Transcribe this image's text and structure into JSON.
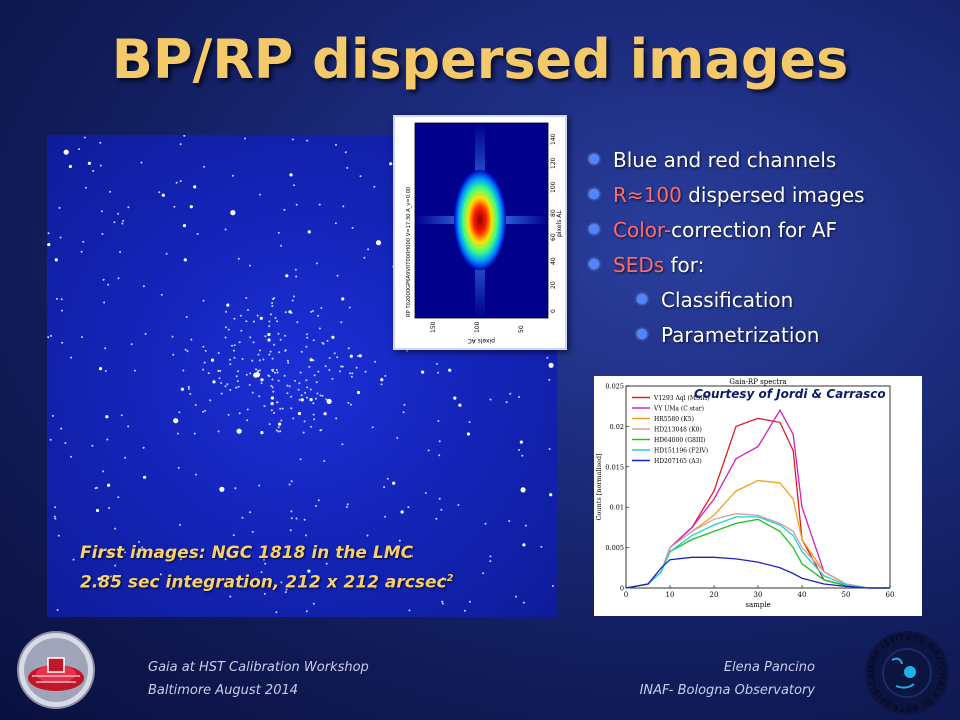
{
  "slide": {
    "title": "BP/RP dispersed images"
  },
  "starfield": {
    "caption_line1": "First images: NGC 1818 in the LMC",
    "caption_line2": "2.85 sec integration, 212 x 212 arcsec",
    "caption_sup": "2"
  },
  "inset": {
    "vertical_label": "RP T02000GP6A9V0T000H000 V=17.30 A_v=0.00",
    "x_axis_label": "pixels AC",
    "y_axis_label": "pixels AL",
    "x_ticks": [
      "150",
      "100",
      "50"
    ],
    "y_ticks": [
      "0",
      "20",
      "40",
      "60",
      "80",
      "100",
      "120",
      "140"
    ]
  },
  "bullets": [
    {
      "text_a": "Blue and red channels",
      "text_red": "",
      "text_b": ""
    },
    {
      "text_a": "",
      "text_red": "R≈100",
      "text_b": " dispersed images"
    },
    {
      "text_a": "",
      "text_red": "Color-",
      "text_b": "correction for AF"
    },
    {
      "text_a": "",
      "text_red": "SEDs",
      "text_b": " for:"
    }
  ],
  "sub_bullets": [
    "Classification",
    "Parametrization"
  ],
  "chart_data": {
    "type": "line",
    "title": "Gaia-RP spectra",
    "xlabel": "sample",
    "ylabel": "Counts [normalised]",
    "xlim": [
      0,
      60
    ],
    "ylim": [
      0,
      0.025
    ],
    "x_ticks": [
      "0",
      "10",
      "20",
      "30",
      "40",
      "50",
      "60"
    ],
    "y_ticks": [
      "0",
      "0.005",
      "0.01",
      "0.015",
      "0.02",
      "0.025"
    ],
    "legend_position": "top-left",
    "x": [
      0,
      5,
      8,
      10,
      15,
      20,
      25,
      30,
      35,
      38,
      40,
      45,
      50,
      55,
      60
    ],
    "series": [
      {
        "name": "V1293 Aql (MSIII)",
        "color": "#e02020",
        "values": [
          0,
          0.0005,
          0.002,
          0.005,
          0.0075,
          0.012,
          0.02,
          0.021,
          0.0205,
          0.017,
          0.006,
          0.001,
          0.0003,
          0,
          0
        ]
      },
      {
        "name": "VY UMa (C star)",
        "color": "#d020c0",
        "values": [
          0,
          0.0005,
          0.002,
          0.005,
          0.0075,
          0.011,
          0.016,
          0.0175,
          0.022,
          0.019,
          0.01,
          0.002,
          0.0005,
          0,
          0
        ]
      },
      {
        "name": "HR5580 (K5)",
        "color": "#f0a020",
        "values": [
          0,
          0.0005,
          0.002,
          0.005,
          0.007,
          0.009,
          0.012,
          0.0133,
          0.013,
          0.011,
          0.006,
          0.002,
          0.0005,
          0,
          0
        ]
      },
      {
        "name": "HD213048 (K0)",
        "color": "#d0a0a0",
        "values": [
          0,
          0.0005,
          0.002,
          0.005,
          0.007,
          0.0085,
          0.0092,
          0.009,
          0.008,
          0.007,
          0.005,
          0.002,
          0.0005,
          0,
          0
        ]
      },
      {
        "name": "HD64000 (G8III)",
        "color": "#20c020",
        "values": [
          0,
          0.0005,
          0.002,
          0.0045,
          0.006,
          0.007,
          0.008,
          0.0085,
          0.007,
          0.005,
          0.003,
          0.001,
          0.0003,
          0,
          0
        ]
      },
      {
        "name": "HD151196 (F2IV)",
        "color": "#20d0d0",
        "values": [
          0,
          0.0005,
          0.002,
          0.0045,
          0.0065,
          0.0078,
          0.0088,
          0.0088,
          0.0078,
          0.0065,
          0.0045,
          0.0015,
          0.0004,
          0,
          0
        ]
      },
      {
        "name": "HD207165 (A3)",
        "color": "#2020c0",
        "values": [
          0,
          0.0005,
          0.0025,
          0.0035,
          0.0038,
          0.0038,
          0.0036,
          0.0032,
          0.0025,
          0.0018,
          0.0012,
          0.0005,
          0.0002,
          0,
          0
        ]
      }
    ]
  },
  "credit": "Courtesy of Jordi & Carrasco",
  "footer": {
    "left_line1": "Gaia at HST Calibration Workshop",
    "left_line2": "Baltimore August 2014",
    "right_line1": "Elena Pancino",
    "right_line2": "INAF- Bologna Observatory"
  },
  "logos": {
    "inaf_text": "INAF ISTITUTO NAZIONALE DI ASTROFISICA"
  },
  "colors": {
    "title": "#f4c96a",
    "caption": "#f6d06c",
    "bullet_highlight": "#ff6b6b",
    "bullet_dot": "#4f86ff"
  }
}
